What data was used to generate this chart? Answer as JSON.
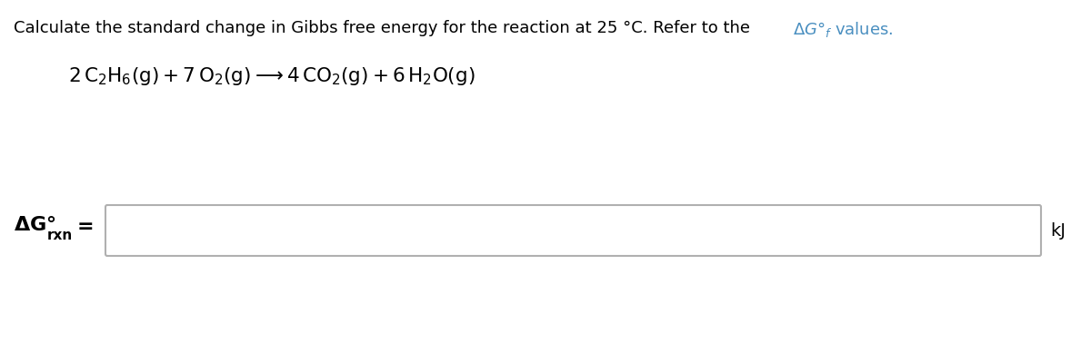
{
  "background_color": "#ffffff",
  "title_black": "Calculate the standard change in Gibbs free energy for the reaction at 25 °C. Refer to the ",
  "title_blue": "ΔG°ₓ values.",
  "title_fontsize": 13.0,
  "equation_fontsize": 15.5,
  "label_fontsize": 16,
  "label_sub_fontsize": 11,
  "unit_fontsize": 14,
  "box_facecolor": "#ffffff",
  "box_edgecolor": "#b0b0b0",
  "text_color": "#000000",
  "blue_color": "#4a8fc0",
  "unit_text": "kJ"
}
